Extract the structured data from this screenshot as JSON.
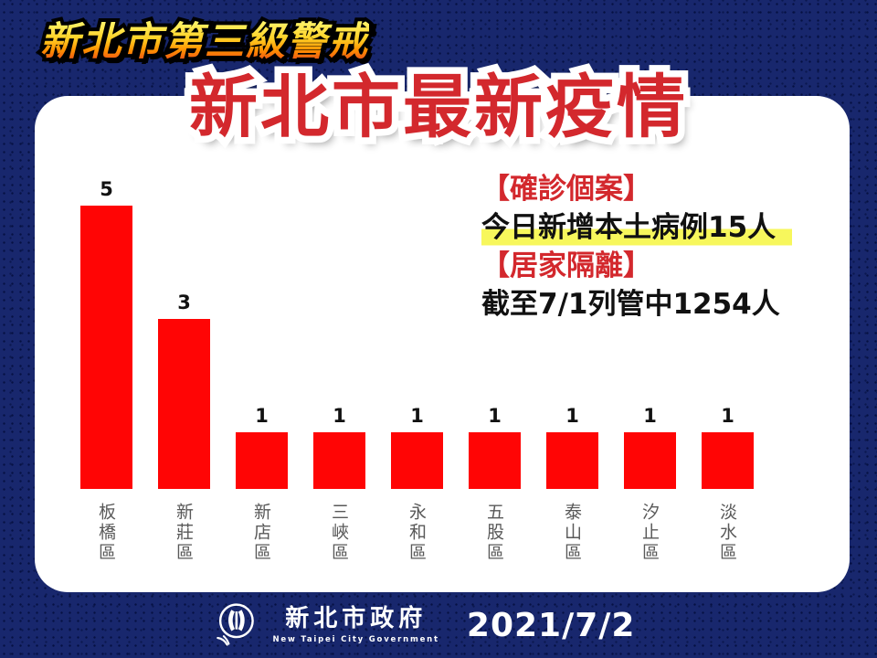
{
  "page": {
    "background_color": "#18276D",
    "card_color": "#FFFFFF"
  },
  "header": {
    "alert_banner": "新北市第三級警戒",
    "title": "新北市最新疫情",
    "title_color": "#D3282D"
  },
  "chart_data": {
    "type": "bar",
    "title": "新北市最新疫情",
    "categories": [
      "板橋區",
      "新莊區",
      "新店區",
      "三峽區",
      "永和區",
      "五股區",
      "泰山區",
      "汐止區",
      "淡水區"
    ],
    "values": [
      5,
      3,
      1,
      1,
      1,
      1,
      1,
      1,
      1
    ],
    "ylim": [
      0,
      5
    ],
    "grid": false,
    "legend": "none",
    "bar_color": "#FF0505",
    "value_label_color": "#111111",
    "category_label_color": "#595959"
  },
  "info_panel": {
    "heading_color": "#D3282D",
    "highlight_color": "#F7F75C",
    "sections": [
      {
        "heading": "【確診個案】",
        "body": "今日新增本土病例15人",
        "highlight": true
      },
      {
        "heading": "【居家隔離】",
        "body": "截至7/1列管中1254人",
        "highlight": false
      }
    ]
  },
  "footer": {
    "logo": "new-taipei-city-government-emblem",
    "org_name": "新北市政府",
    "org_name_en": "New Taipei City Government",
    "date": "2021/7/2"
  }
}
